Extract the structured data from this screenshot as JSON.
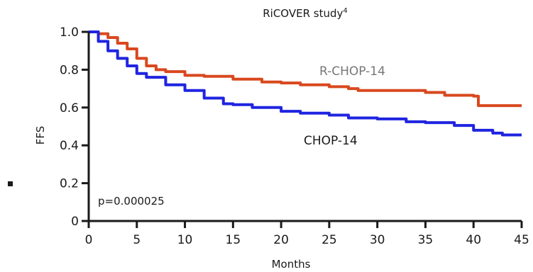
{
  "chart_data": {
    "type": "line",
    "title": "RiCOVER study",
    "title_superscript": "4",
    "xlabel": "Months",
    "ylabel": "FFS",
    "xlim": [
      0,
      45
    ],
    "ylim": [
      0,
      1.0
    ],
    "x_ticks": [
      "0",
      "5",
      "10",
      "15",
      "20",
      "25",
      "30",
      "35",
      "40",
      "45"
    ],
    "y_ticks": [
      "0",
      "0.2",
      "0.4",
      "0.6",
      "0.8",
      "1.0"
    ],
    "annotation": "p=0.000025",
    "grid": false,
    "legend": "none (series labelled inline)",
    "series": [
      {
        "name": "R-CHOP-14",
        "color": "#d9481e",
        "label_color": "#777777",
        "points": [
          [
            0,
            1.0
          ],
          [
            1,
            0.99
          ],
          [
            2,
            0.97
          ],
          [
            3,
            0.94
          ],
          [
            4,
            0.91
          ],
          [
            5,
            0.86
          ],
          [
            6,
            0.82
          ],
          [
            7,
            0.8
          ],
          [
            8,
            0.79
          ],
          [
            10,
            0.77
          ],
          [
            12,
            0.765
          ],
          [
            15,
            0.75
          ],
          [
            18,
            0.735
          ],
          [
            20,
            0.73
          ],
          [
            22,
            0.72
          ],
          [
            25,
            0.71
          ],
          [
            27,
            0.7
          ],
          [
            28,
            0.69
          ],
          [
            31,
            0.69
          ],
          [
            35,
            0.68
          ],
          [
            37,
            0.665
          ],
          [
            40,
            0.66
          ],
          [
            40.5,
            0.61
          ],
          [
            45,
            0.61
          ]
        ]
      },
      {
        "name": "CHOP-14",
        "color": "#1f24e0",
        "label_color": "#1a1a1a",
        "points": [
          [
            0,
            1.0
          ],
          [
            1,
            0.95
          ],
          [
            2,
            0.9
          ],
          [
            3,
            0.86
          ],
          [
            4,
            0.82
          ],
          [
            5,
            0.78
          ],
          [
            6,
            0.76
          ],
          [
            8,
            0.72
          ],
          [
            10,
            0.69
          ],
          [
            12,
            0.65
          ],
          [
            14,
            0.62
          ],
          [
            15,
            0.615
          ],
          [
            17,
            0.6
          ],
          [
            20,
            0.58
          ],
          [
            22,
            0.57
          ],
          [
            25,
            0.56
          ],
          [
            27,
            0.545
          ],
          [
            30,
            0.54
          ],
          [
            33,
            0.525
          ],
          [
            35,
            0.52
          ],
          [
            38,
            0.505
          ],
          [
            40,
            0.48
          ],
          [
            42,
            0.465
          ],
          [
            43,
            0.455
          ],
          [
            45,
            0.455
          ]
        ]
      }
    ]
  }
}
